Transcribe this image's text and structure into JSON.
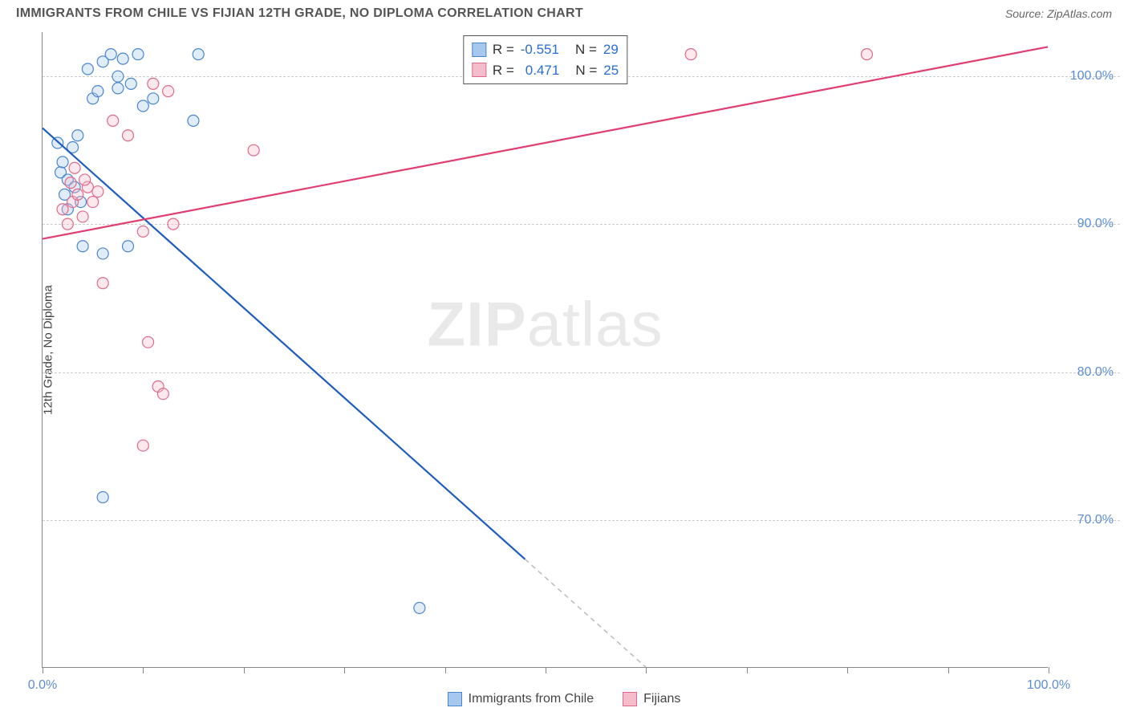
{
  "title": "IMMIGRANTS FROM CHILE VS FIJIAN 12TH GRADE, NO DIPLOMA CORRELATION CHART",
  "source": "Source: ZipAtlas.com",
  "ylabel": "12th Grade, No Diploma",
  "watermark_zip": "ZIP",
  "watermark_atlas": "atlas",
  "chart": {
    "type": "scatter",
    "background_color": "#ffffff",
    "grid_color": "#cccccc",
    "axis_color": "#888888",
    "label_color": "#5b8dd6",
    "xlim": [
      0,
      100
    ],
    "ylim": [
      60,
      103
    ],
    "xticks": [
      0,
      10,
      20,
      30,
      40,
      50,
      60,
      70,
      80,
      90,
      100
    ],
    "xtick_labels": {
      "0": "0.0%",
      "100": "100.0%"
    },
    "yticks": [
      70,
      80,
      90,
      100
    ],
    "ytick_labels": {
      "70": "70.0%",
      "80": "80.0%",
      "90": "90.0%",
      "100": "100.0%"
    },
    "marker_radius": 7,
    "marker_stroke_width": 1.2,
    "marker_fill_opacity": 0.35,
    "line_width": 2.2,
    "series": [
      {
        "name": "Immigrants from Chile",
        "color_stroke": "#4a86d0",
        "color_fill": "#a5c8ec",
        "line_color": "#1d5cc0",
        "r_value": -0.551,
        "n_value": 29,
        "trend": {
          "x1": 0,
          "y1": 96.5,
          "x2": 60,
          "y2": 60
        },
        "trend_dash_from_x": 48,
        "points": [
          [
            1.5,
            95.5
          ],
          [
            1.8,
            93.5
          ],
          [
            2.2,
            92.0
          ],
          [
            2.5,
            93.0
          ],
          [
            2.0,
            94.2
          ],
          [
            3.0,
            95.2
          ],
          [
            3.5,
            96.0
          ],
          [
            3.2,
            92.5
          ],
          [
            4.5,
            100.5
          ],
          [
            5.0,
            98.5
          ],
          [
            5.5,
            99.0
          ],
          [
            6.0,
            101.0
          ],
          [
            6.8,
            101.5
          ],
          [
            7.5,
            100.0
          ],
          [
            8.0,
            101.2
          ],
          [
            8.8,
            99.5
          ],
          [
            9.5,
            101.5
          ],
          [
            10.0,
            98.0
          ],
          [
            11.0,
            98.5
          ],
          [
            8.5,
            88.5
          ],
          [
            4.0,
            88.5
          ],
          [
            6.0,
            88.0
          ],
          [
            15.5,
            101.5
          ],
          [
            15.0,
            97.0
          ],
          [
            6.0,
            71.5
          ],
          [
            2.5,
            91.0
          ],
          [
            3.8,
            91.5
          ],
          [
            37.5,
            64.0
          ],
          [
            7.5,
            99.2
          ]
        ]
      },
      {
        "name": "Fijians",
        "color_stroke": "#e06a8a",
        "color_fill": "#f5bccb",
        "line_color": "#e23d70",
        "r_value": 0.471,
        "n_value": 25,
        "trend": {
          "x1": 0,
          "y1": 89.0,
          "x2": 100,
          "y2": 102.0
        },
        "points": [
          [
            2.0,
            91.0
          ],
          [
            2.5,
            90.0
          ],
          [
            3.0,
            91.5
          ],
          [
            3.5,
            92.0
          ],
          [
            4.0,
            90.5
          ],
          [
            4.5,
            92.5
          ],
          [
            5.0,
            91.5
          ],
          [
            6.0,
            86.0
          ],
          [
            7.0,
            97.0
          ],
          [
            8.5,
            96.0
          ],
          [
            10.0,
            89.5
          ],
          [
            11.0,
            99.5
          ],
          [
            12.5,
            99.0
          ],
          [
            10.5,
            82.0
          ],
          [
            11.5,
            79.0
          ],
          [
            12.0,
            78.5
          ],
          [
            13.0,
            90.0
          ],
          [
            10.0,
            75.0
          ],
          [
            21.0,
            95.0
          ],
          [
            64.5,
            101.5
          ],
          [
            82.0,
            101.5
          ],
          [
            3.2,
            93.8
          ],
          [
            2.8,
            92.8
          ],
          [
            4.2,
            93.0
          ],
          [
            5.5,
            92.2
          ]
        ]
      }
    ]
  },
  "legend_top": {
    "r_label": "R =",
    "n_label": "N ="
  },
  "legend_bottom": [
    {
      "swatch_fill": "#a5c8ec",
      "swatch_stroke": "#4a86d0",
      "label": "Immigrants from Chile"
    },
    {
      "swatch_fill": "#f5bccb",
      "swatch_stroke": "#e06a8a",
      "label": "Fijians"
    }
  ]
}
